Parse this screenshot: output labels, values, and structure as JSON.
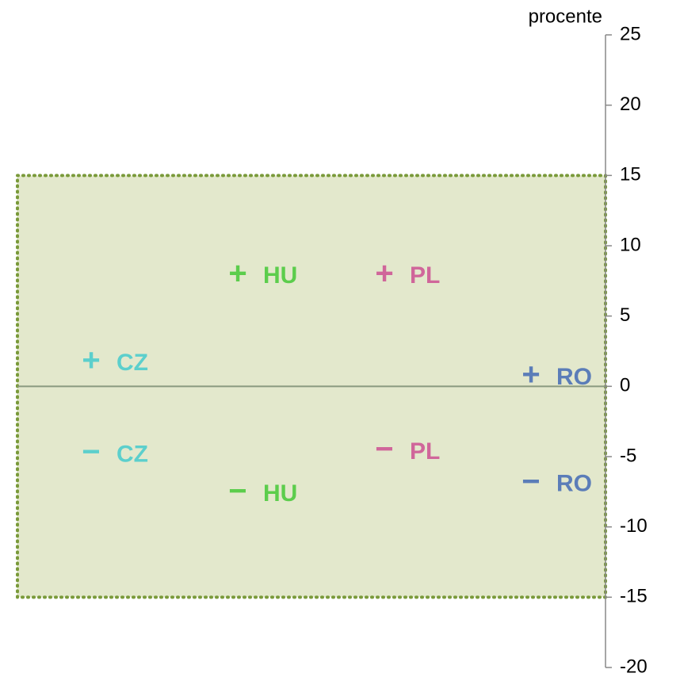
{
  "chart_data": {
    "type": "marker-plot",
    "y_label": "procente",
    "markers": [
      "+",
      "−"
    ],
    "series": [
      {
        "name": "CZ",
        "color": "#5ccfcc",
        "values": [
          1.7,
          -4.8
        ]
      },
      {
        "name": "HU",
        "color": "#5ccd4c",
        "values": [
          7.9,
          -7.6
        ]
      },
      {
        "name": "PL",
        "color": "#d0669a",
        "values": [
          7.9,
          -4.6
        ]
      },
      {
        "name": "RO",
        "color": "#5b7db8",
        "values": [
          0.7,
          -6.9
        ]
      }
    ],
    "ylim": [
      -20,
      25
    ],
    "yticks": [
      -20,
      -15,
      -10,
      -5,
      0,
      5,
      10,
      15,
      20,
      25
    ],
    "band": [
      -15,
      15
    ],
    "band_color": "#e3e8cc",
    "band_border": "#7a9a3a",
    "zero_line": true
  }
}
